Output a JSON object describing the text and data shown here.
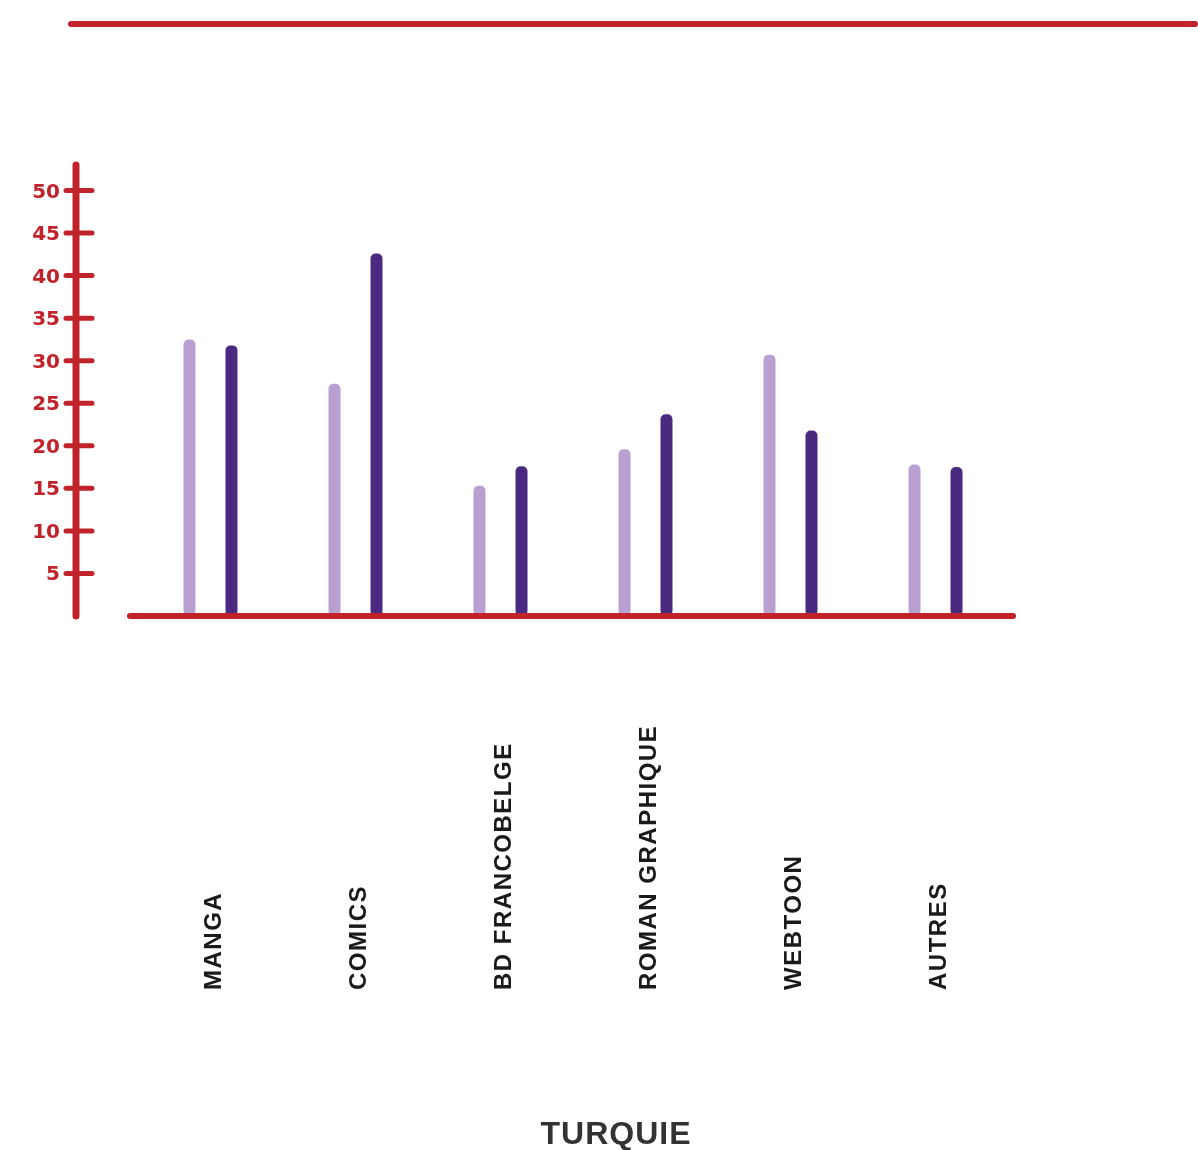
{
  "chart_data": {
    "type": "bar",
    "xlabel": "TURQUIE",
    "categories": [
      "MANGA",
      "COMICS",
      "BD FRANCOBELGE",
      "ROMAN GRAPHIQUE",
      "WEBTOON",
      "AUTRES"
    ],
    "series": [
      {
        "color": "#b9a0d2",
        "values": [
          32.5,
          27.3,
          15.3,
          19.6,
          30.7,
          17.8
        ]
      },
      {
        "color": "#4a2a80",
        "values": [
          31.8,
          42.6,
          17.6,
          23.7,
          21.8,
          17.5
        ]
      }
    ],
    "ylim": [
      0,
      53
    ],
    "yticks": [
      {
        "value": 5,
        "label": "5"
      },
      {
        "value": 10,
        "label": "10"
      },
      15,
      20,
      25,
      30,
      35,
      40,
      45,
      50
    ],
    "grid": false
  }
}
